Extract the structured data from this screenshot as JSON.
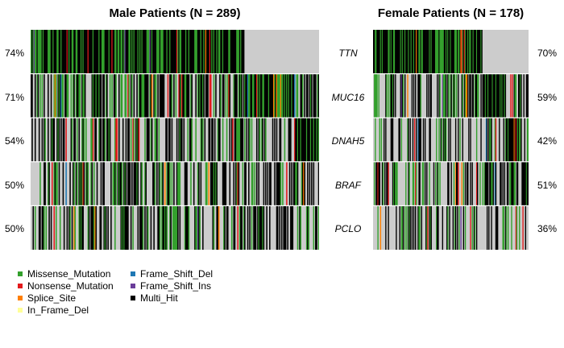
{
  "chart_data": {
    "type": "heatmap",
    "subtype": "oncoplot",
    "genes": [
      "TTN",
      "MUC16",
      "DNAH5",
      "BRAF",
      "PCLO"
    ],
    "panels": [
      {
        "title": "Male Patients (N = 289)",
        "n_patients": 289,
        "percentages": [
          "74%",
          "71%",
          "54%",
          "50%",
          "50%"
        ],
        "percent_values": [
          74,
          71,
          54,
          50,
          50
        ],
        "percent_side": "left"
      },
      {
        "title": "Female Patients (N = 178)",
        "n_patients": 178,
        "percentages": [
          "70%",
          "59%",
          "42%",
          "51%",
          "36%"
        ],
        "percent_values": [
          70,
          59,
          42,
          51,
          36
        ],
        "percent_side": "right"
      }
    ],
    "legend": [
      {
        "label": "Missense_Mutation",
        "color": "#33a02c"
      },
      {
        "label": "Nonsense_Mutation",
        "color": "#e31a1c"
      },
      {
        "label": "Splice_Site",
        "color": "#ff7f00"
      },
      {
        "label": "In_Frame_Del",
        "color": "#ffff99"
      },
      {
        "label": "Frame_Shift_Del",
        "color": "#1f78b4"
      },
      {
        "label": "Frame_Shift_Ins",
        "color": "#6a3d9a"
      },
      {
        "label": "Multi_Hit",
        "color": "#000000"
      }
    ],
    "background_color": "#cccccc",
    "legend_position": "bottom-left"
  }
}
